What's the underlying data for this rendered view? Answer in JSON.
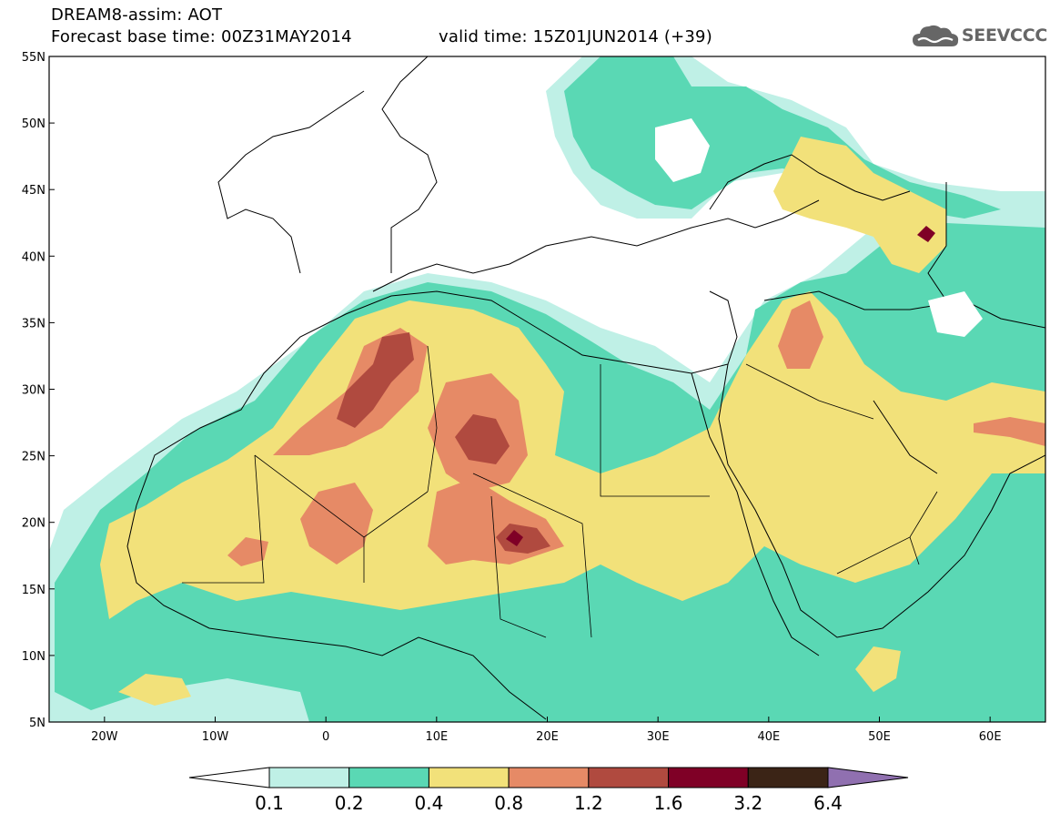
{
  "title": {
    "line1": "DREAM8-assim: AOT",
    "line2": "Forecast base time: 00Z31MAY2014",
    "valid": "valid time: 15Z01JUN2014 (+39)"
  },
  "logo": {
    "text": "SEEVCCC",
    "icon": "cloud-icon",
    "color": "#666666"
  },
  "map": {
    "lon_range": [
      -25,
      65
    ],
    "lat_range": [
      5,
      55
    ],
    "lat_ticks": [
      {
        "value": 55,
        "label": "55N"
      },
      {
        "value": 50,
        "label": "50N"
      },
      {
        "value": 45,
        "label": "45N"
      },
      {
        "value": 40,
        "label": "40N"
      },
      {
        "value": 35,
        "label": "35N"
      },
      {
        "value": 30,
        "label": "30N"
      },
      {
        "value": 25,
        "label": "25N"
      },
      {
        "value": 20,
        "label": "20N"
      },
      {
        "value": 15,
        "label": "15N"
      },
      {
        "value": 10,
        "label": "10N"
      },
      {
        "value": 5,
        "label": "5N"
      }
    ],
    "lon_ticks": [
      {
        "value": -20,
        "label": "20W"
      },
      {
        "value": -10,
        "label": "10W"
      },
      {
        "value": 0,
        "label": "0"
      },
      {
        "value": 10,
        "label": "10E"
      },
      {
        "value": 20,
        "label": "20E"
      },
      {
        "value": 30,
        "label": "30E"
      },
      {
        "value": 40,
        "label": "40E"
      },
      {
        "value": 50,
        "label": "50E"
      },
      {
        "value": 60,
        "label": "60E"
      }
    ]
  },
  "colorbar": {
    "levels": [
      "0.1",
      "0.2",
      "0.4",
      "0.8",
      "1.2",
      "1.6",
      "3.2",
      "6.4"
    ],
    "colors": [
      "#ffffff",
      "#bff0e6",
      "#5ad8b4",
      "#f2e17a",
      "#e68a66",
      "#b04a3f",
      "#7f0026",
      "#3b2416",
      "#9070b0"
    ]
  }
}
